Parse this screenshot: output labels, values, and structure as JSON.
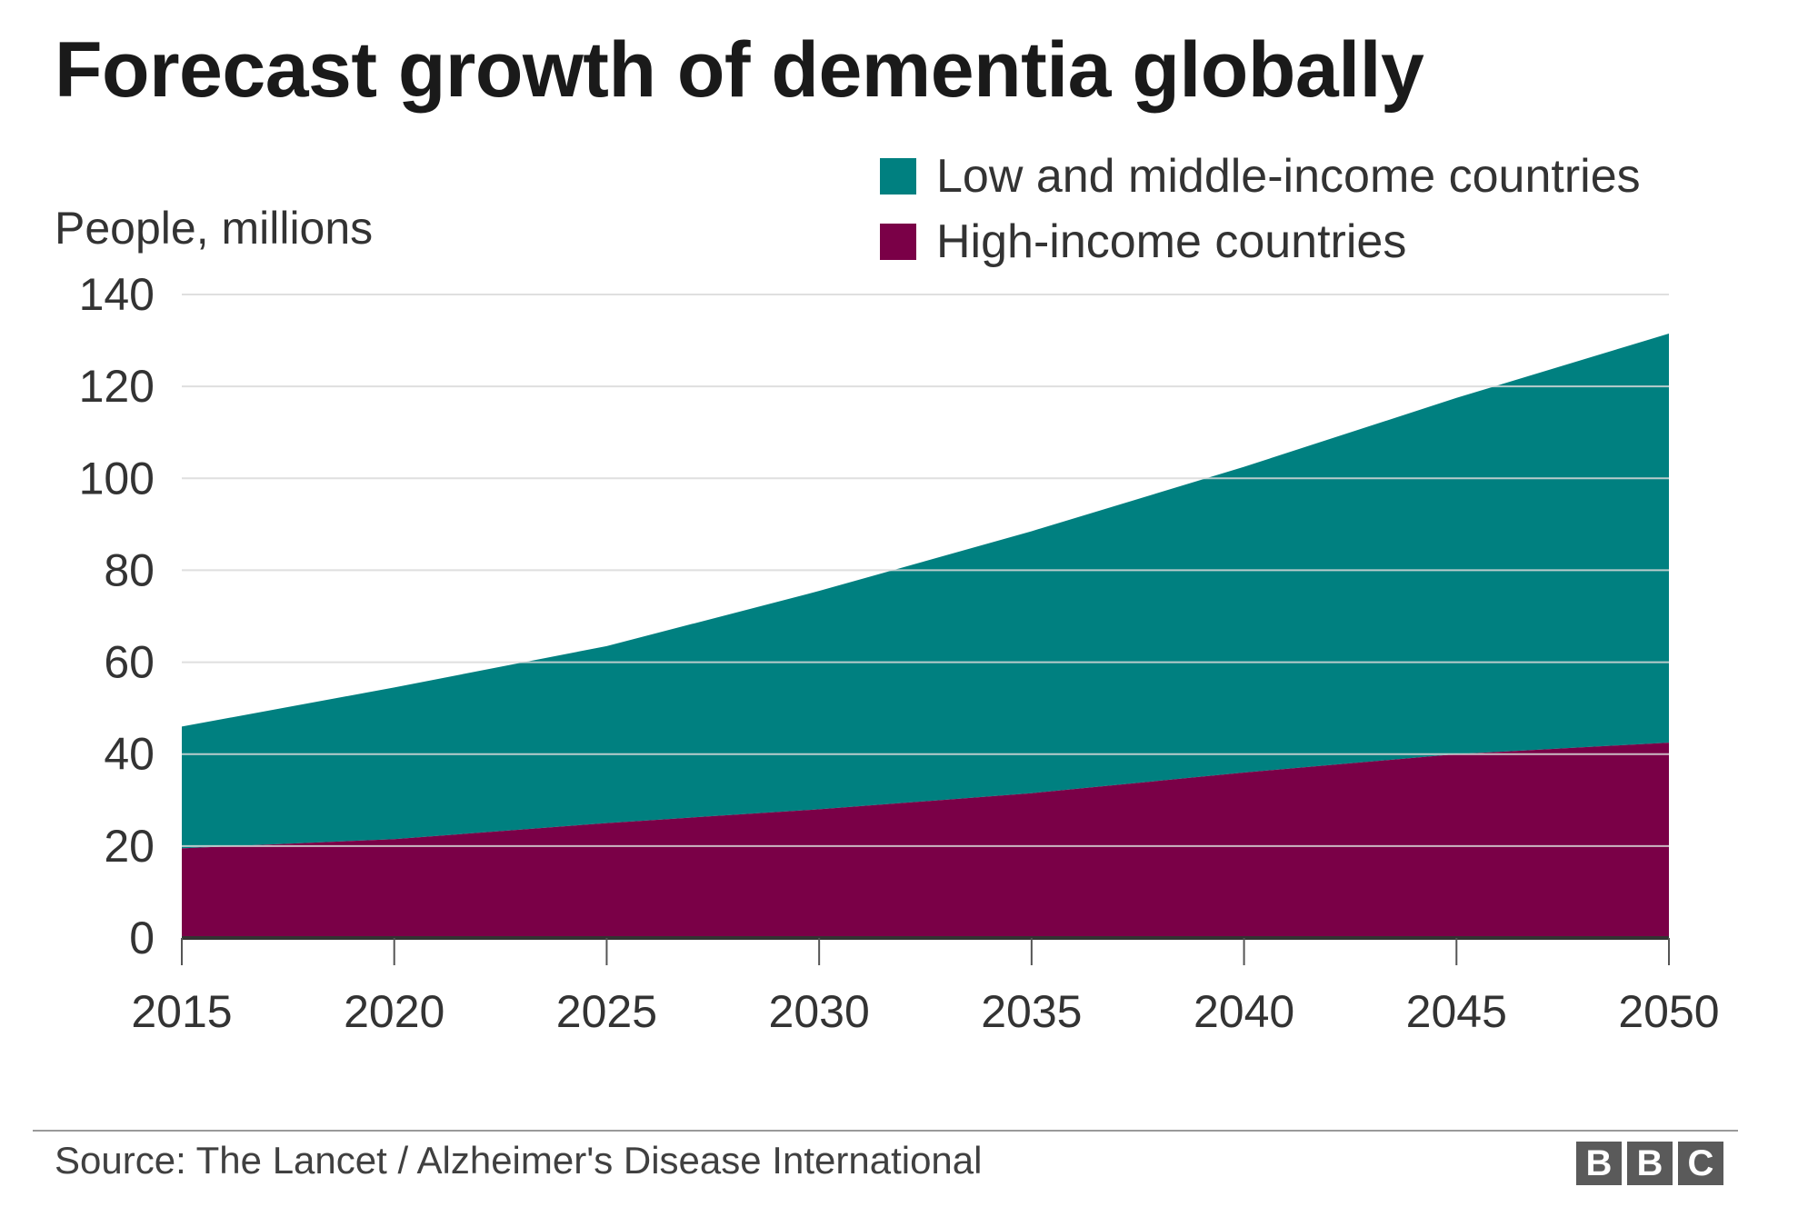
{
  "title": "Forecast growth of dementia globally",
  "source": "Source: The Lancet / Alzheimer's Disease International",
  "logo": {
    "letters": [
      "B",
      "B",
      "C"
    ],
    "text": "BBC"
  },
  "colors": {
    "lmic": "#008080",
    "high": "#7a0047",
    "grid": "#d9d9d9",
    "axis": "#333333"
  },
  "chart_data": {
    "type": "area",
    "stacked": true,
    "title": "Forecast growth of dementia globally",
    "ylabel": "People, millions",
    "xlabel": "",
    "x": [
      2015,
      2020,
      2025,
      2030,
      2035,
      2040,
      2045,
      2050
    ],
    "xticks": [
      "2015",
      "2020",
      "2025",
      "2030",
      "2035",
      "2040",
      "2045",
      "2050"
    ],
    "yticks": [
      "0",
      "20",
      "40",
      "60",
      "80",
      "100",
      "120",
      "140"
    ],
    "ylim": [
      0,
      140
    ],
    "grid": true,
    "legend_position": "top-right",
    "series": [
      {
        "name": "High-income countries",
        "color": "#7a0047",
        "values": [
          19.5,
          21.5,
          25,
          28,
          31.5,
          36,
          40,
          42.5
        ]
      },
      {
        "name": "Low and middle-income countries",
        "color": "#008080",
        "values": [
          26.5,
          33,
          38.5,
          47.5,
          57,
          66.5,
          77.5,
          89
        ]
      }
    ],
    "totals": [
      46,
      54.5,
      63.5,
      75.5,
      88.5,
      102.5,
      117.5,
      131.5
    ]
  }
}
